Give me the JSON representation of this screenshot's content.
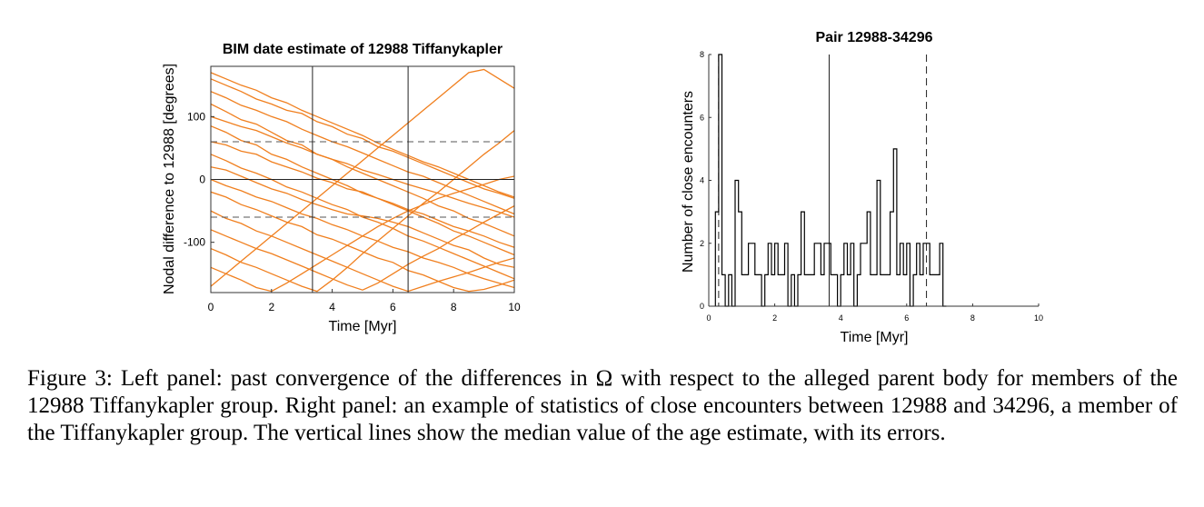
{
  "chart_data": [
    {
      "type": "line",
      "title": "BIM date estimate of 12988 Tiffanykapler",
      "xlabel": "Time [Myr]",
      "ylabel": "Nodal difference to 12988 [degrees]",
      "xlim": [
        0,
        10
      ],
      "ylim": [
        -180,
        180
      ],
      "xticks": [
        "0",
        "2",
        "4",
        "6",
        "8",
        "10"
      ],
      "yticks": [
        "100",
        "0",
        "-100"
      ],
      "series_color": "#f07f1e",
      "reference_lines": {
        "horizontal_dashed": [
          60,
          -60
        ],
        "horizontal_solid": [
          0
        ],
        "vertical_solid": [
          3.35,
          6.5
        ]
      },
      "series": [
        {
          "x": [
            0,
            0.5,
            1,
            1.5,
            2,
            2.5,
            3,
            3.5,
            4,
            4.5,
            5,
            5.5,
            6,
            6.5,
            7,
            7.5,
            8,
            8.5,
            9,
            9.5,
            10
          ],
          "values": [
            160,
            150,
            140,
            128,
            120,
            110,
            105,
            92,
            84,
            72,
            65,
            52,
            45,
            35,
            25,
            15,
            5,
            -5,
            -15,
            -22,
            -30
          ]
        },
        {
          "x": [
            0,
            0.5,
            1,
            1.5,
            2,
            2.5,
            3,
            3.5,
            4,
            4.5,
            5,
            5.5,
            6,
            6.5,
            7,
            7.5,
            8,
            8.5,
            9,
            9.5,
            10
          ],
          "values": [
            120,
            108,
            95,
            88,
            75,
            62,
            55,
            40,
            32,
            20,
            10,
            0,
            -10,
            -20,
            -30,
            -42,
            -50,
            -62,
            -70,
            -80,
            -90
          ]
        },
        {
          "x": [
            0,
            0.5,
            1,
            1.5,
            2,
            2.5,
            3,
            3.5,
            4,
            4.5,
            5,
            5.5,
            6,
            6.5,
            7,
            7.5,
            8,
            8.5,
            9,
            9.5,
            10
          ],
          "values": [
            85,
            75,
            62,
            55,
            40,
            32,
            20,
            10,
            0,
            -10,
            -22,
            -30,
            -40,
            -50,
            -60,
            -70,
            -82,
            -90,
            -100,
            -110,
            -120
          ]
        },
        {
          "x": [
            0,
            0.5,
            1,
            1.5,
            2,
            2.5,
            3,
            3.5,
            4,
            4.5,
            5,
            5.5,
            6,
            6.5,
            7,
            7.5,
            8,
            8.5,
            9,
            9.5,
            10
          ],
          "values": [
            40,
            30,
            18,
            10,
            0,
            -12,
            -20,
            -30,
            -40,
            -48,
            -60,
            -68,
            -78,
            -90,
            -98,
            -108,
            -118,
            -128,
            -138,
            -148,
            -158
          ]
        },
        {
          "x": [
            0,
            0.5,
            1,
            1.5,
            2,
            2.5,
            3,
            3.5,
            4,
            4.5,
            5,
            5.5,
            6,
            6.5,
            7,
            7.5,
            8,
            8.5,
            9,
            9.5,
            10
          ],
          "values": [
            20,
            15,
            5,
            -5,
            -15,
            -22,
            -32,
            -40,
            -48,
            -55,
            -58,
            -62,
            -68,
            -75,
            -85,
            -95,
            -105,
            -112,
            -125,
            -135,
            -140
          ]
        },
        {
          "x": [
            0,
            0.5,
            1,
            1.5,
            2,
            2.5,
            3,
            3.5,
            4,
            4.5,
            5,
            5.5,
            6,
            6.5,
            7,
            7.5,
            8,
            8.5,
            9,
            9.5,
            10
          ],
          "values": [
            -20,
            -28,
            -40,
            -48,
            -58,
            -68,
            -75,
            -88,
            -95,
            -105,
            -115,
            -125,
            -132,
            -145,
            -152,
            -162,
            -172,
            -178,
            -175,
            -168,
            -160
          ]
        },
        {
          "x": [
            0,
            0.5,
            1,
            1.5,
            2,
            2.5,
            3,
            3.5,
            4,
            4.5,
            5,
            5.5,
            6,
            6.5,
            7,
            7.5,
            8,
            8.5,
            9,
            9.5,
            10
          ],
          "values": [
            -50,
            -62,
            -70,
            -82,
            -90,
            -100,
            -110,
            -120,
            -130,
            -140,
            -150,
            -160,
            -170,
            -178,
            -170,
            -162,
            -155,
            -148,
            -140,
            -132,
            -125
          ]
        },
        {
          "x": [
            0,
            0.5,
            1,
            1.5,
            2,
            2.5,
            3,
            3.5,
            4,
            4.5,
            5,
            5.5,
            6,
            6.5,
            7,
            7.5,
            8,
            8.5,
            9,
            9.5,
            10
          ],
          "values": [
            -80,
            -90,
            -100,
            -110,
            -118,
            -128,
            -138,
            -148,
            -158,
            -168,
            -176,
            -165,
            -150,
            -135,
            -122,
            -110,
            -95,
            -82,
            -68,
            -55,
            -42
          ]
        },
        {
          "x": [
            0,
            0.5,
            1,
            1.5,
            2,
            2.5,
            3,
            3.5,
            4,
            4.5,
            5,
            5.5,
            6,
            6.5,
            7,
            7.5,
            8,
            8.5,
            9,
            9.5,
            10
          ],
          "values": [
            -110,
            -120,
            -132,
            -140,
            -150,
            -160,
            -170,
            -178,
            -160,
            -140,
            -118,
            -98,
            -78,
            -58,
            -38,
            -20,
            0,
            20,
            40,
            58,
            78
          ]
        },
        {
          "x": [
            0,
            0.5,
            1,
            1.5,
            2,
            2.5,
            3,
            3.5,
            4,
            4.5,
            5,
            5.5,
            6,
            6.5,
            7,
            7.5,
            8,
            8.5,
            9,
            9.5,
            10
          ],
          "values": [
            -140,
            -150,
            -160,
            -172,
            -178,
            -165,
            -150,
            -135,
            -120,
            -105,
            -90,
            -75,
            -62,
            -50,
            -40,
            -30,
            -22,
            -15,
            -8,
            0,
            5
          ]
        },
        {
          "x": [
            0,
            0.5,
            1,
            1.5,
            2,
            2.5,
            3,
            3.5,
            4,
            4.5,
            5,
            5.5,
            6,
            6.5,
            7,
            7.5,
            8,
            8.5,
            9,
            9.5,
            10
          ],
          "values": [
            170,
            160,
            150,
            142,
            130,
            122,
            110,
            100,
            90,
            80,
            70,
            58,
            48,
            38,
            28,
            20,
            10,
            0,
            -10,
            -20,
            -28
          ]
        },
        {
          "x": [
            0,
            0.5,
            1,
            1.5,
            2,
            2.5,
            3,
            3.5,
            4,
            4.5,
            5,
            5.5,
            6,
            6.5,
            7,
            7.5,
            8,
            8.5,
            9,
            9.5,
            10
          ],
          "values": [
            60,
            55,
            45,
            40,
            28,
            20,
            12,
            2,
            -5,
            -15,
            -20,
            -30,
            -38,
            -48,
            -55,
            -65,
            -75,
            -82,
            -90,
            -100,
            -108
          ]
        },
        {
          "x": [
            0,
            0.5,
            1,
            1.5,
            2,
            2.5,
            3,
            3.5,
            4,
            4.5,
            5,
            5.5,
            6,
            6.5,
            7,
            7.5,
            8,
            8.5,
            9,
            9.5,
            10
          ],
          "values": [
            0,
            -10,
            -18,
            -28,
            -35,
            -45,
            -55,
            -62,
            -72,
            -80,
            -90,
            -98,
            -108,
            -115,
            -125,
            -132,
            -140,
            -150,
            -158,
            -165,
            -172
          ]
        },
        {
          "x": [
            0,
            0.5,
            1,
            1.5,
            2,
            2.5,
            3,
            3.5,
            4,
            4.5,
            5,
            5.5,
            6,
            6.5,
            7,
            7.5,
            8,
            8.5,
            9,
            9.5,
            10
          ],
          "values": [
            100,
            92,
            84,
            78,
            68,
            58,
            50,
            40,
            32,
            25,
            15,
            8,
            0,
            -8,
            -15,
            -22,
            -30,
            -38,
            -45,
            -52,
            -60
          ]
        },
        {
          "x": [
            0,
            0.5,
            1,
            1.5,
            2,
            2.5,
            3,
            3.5,
            4,
            4.5,
            5,
            5.5,
            6,
            6.5,
            7,
            7.5,
            8,
            8.5,
            9,
            9.5,
            10
          ],
          "values": [
            -170,
            -150,
            -130,
            -110,
            -90,
            -70,
            -50,
            -30,
            -10,
            10,
            30,
            50,
            70,
            90,
            110,
            130,
            150,
            170,
            175,
            160,
            145
          ]
        },
        {
          "x": [
            0,
            0.5,
            1,
            1.5,
            2,
            2.5,
            3,
            3.5,
            4,
            4.5,
            5,
            5.5,
            6,
            6.5,
            7,
            7.5,
            8,
            8.5,
            9,
            9.5,
            10
          ],
          "values": [
            140,
            130,
            118,
            110,
            100,
            92,
            80,
            70,
            60,
            52,
            42,
            32,
            22,
            12,
            5,
            -5,
            -15,
            -25,
            -35,
            -45,
            -55
          ]
        }
      ]
    },
    {
      "type": "histogram",
      "title": "Pair 12988-34296",
      "xlabel": "Time [Myr]",
      "ylabel": "Number of close encounters",
      "xlim": [
        0,
        10
      ],
      "ylim": [
        0,
        8
      ],
      "xticks": [
        "0",
        "2",
        "4",
        "6",
        "8",
        "10"
      ],
      "yticks": [
        "0",
        "2",
        "4",
        "6",
        "8"
      ],
      "bin_width": 0.1,
      "bin_starts": [
        0.2,
        0.3,
        0.4,
        0.5,
        0.6,
        0.7,
        0.8,
        0.9,
        1.0,
        1.1,
        1.2,
        1.3,
        1.4,
        1.5,
        1.6,
        1.7,
        1.8,
        1.9,
        2.0,
        2.1,
        2.2,
        2.3,
        2.4,
        2.5,
        2.6,
        2.7,
        2.8,
        2.9,
        3.0,
        3.1,
        3.2,
        3.3,
        3.4,
        3.5,
        3.6,
        3.7,
        3.8,
        3.9,
        4.0,
        4.1,
        4.2,
        4.3,
        4.4,
        4.5,
        4.6,
        4.7,
        4.8,
        4.9,
        5.0,
        5.1,
        5.2,
        5.3,
        5.4,
        5.5,
        5.6,
        5.7,
        5.8,
        5.9,
        6.0,
        6.1,
        6.2,
        6.3,
        6.4,
        6.5,
        6.6,
        6.7,
        6.8,
        6.9,
        7.0,
        7.1
      ],
      "values": [
        3,
        8,
        1,
        0,
        1,
        0,
        4,
        3,
        1,
        1,
        2,
        2,
        1,
        1,
        0,
        1,
        2,
        1,
        2,
        1,
        1,
        2,
        0,
        1,
        0,
        1,
        3,
        1,
        1,
        1,
        2,
        2,
        1,
        2,
        2,
        1,
        1,
        0,
        1,
        2,
        1,
        2,
        0,
        1,
        2,
        2,
        3,
        1,
        1,
        4,
        1,
        1,
        1,
        3,
        5,
        1,
        2,
        1,
        2,
        0,
        1,
        2,
        1,
        2,
        2,
        1,
        1,
        1,
        2,
        0
      ],
      "reference_lines": {
        "vertical_solid": [
          3.65
        ],
        "vertical_dashed": [
          0.3,
          6.6
        ]
      }
    }
  ],
  "caption": "Figure 3: Left panel: past convergence of the differences in Ω with respect to the alleged parent body for members of the 12988 Tiffanykapler group. Right panel: an example of statistics of close encounters between 12988 and 34296, a member of the Tiffanykapler group. The vertical lines show the median value of the age estimate, with its errors."
}
